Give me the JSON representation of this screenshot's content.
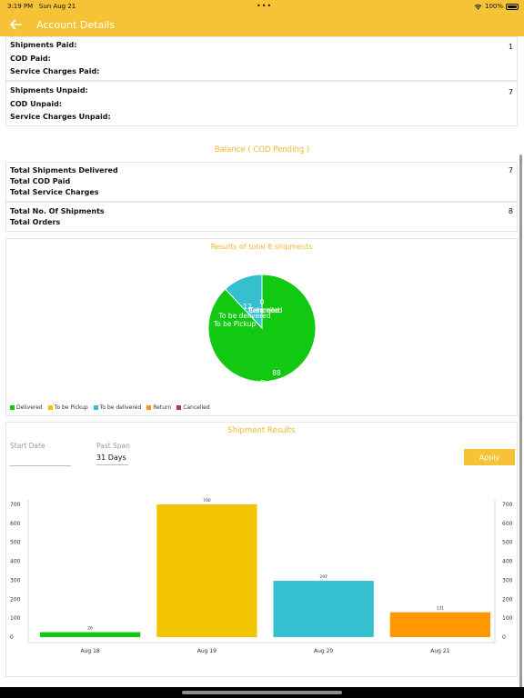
{
  "status_bar": {
    "time": "3:19 PM",
    "date": "Sun Aug 21",
    "dots": "•••",
    "battery": "100%"
  },
  "nav": {
    "title": "Account Details",
    "back_icon": "arrow-left-icon"
  },
  "paid": {
    "shipments_label": "Shipments Paid:",
    "shipments_value": "1",
    "cod_label": "COD Paid:",
    "cod_value": "",
    "service_label": "Service Charges Paid:",
    "service_value": ""
  },
  "unpaid": {
    "shipments_label": "Shipments Unpaid:",
    "shipments_value": "7",
    "cod_label": "COD Unpaid:",
    "cod_value": "",
    "service_label": "Service Charges Unpaid:",
    "service_value": ""
  },
  "balance_title": "Balance ( COD Pending )",
  "totals": {
    "delivered_label": "Total Shipments Delivered",
    "delivered_value": "7",
    "cod_label": "Total COD Paid",
    "cod_value": "",
    "service_label": "Total Service Charges",
    "service_value": ""
  },
  "orders": {
    "shipments_label": "Total No. Of Shipments",
    "shipments_value": "8",
    "orders_label": "Total Orders",
    "orders_value": ""
  },
  "pie_section": {
    "title": "Results of total 8 shipments"
  },
  "shipment_results": {
    "title": "Shipment Results",
    "start_date_label": "Start Date",
    "start_date_value": "",
    "past_span_label": "Past Span",
    "past_span_value": "31 Days",
    "apply_label": "Apply"
  },
  "colors": {
    "brand": "#f6c337",
    "delivered": "#12c912",
    "to_be_pickup": "#f2c500",
    "to_be_delivered": "#35c0d0",
    "return": "#ff9800",
    "cancelled": "#c0314b"
  },
  "chart_data": [
    {
      "type": "pie",
      "title": "Results of total 8 shipments",
      "slices": [
        {
          "name": "Delivered",
          "value": 88,
          "color": "#12c912"
        },
        {
          "name": "To be Pickup",
          "value": 0,
          "color": "#f2c500"
        },
        {
          "name": "To be delivered",
          "value": 12,
          "color": "#35c0d0"
        },
        {
          "name": "Return",
          "value": 0,
          "color": "#ff9800"
        },
        {
          "name": "Cancelled",
          "value": 0,
          "color": "#c0314b"
        }
      ],
      "slice_labels": [
        {
          "text": "88",
          "sub": "Delivered"
        },
        {
          "text": "12",
          "sub": "To be delivered"
        },
        {
          "text": "",
          "sub": "To be Pickup"
        },
        {
          "text": "0",
          "sub": "Returned"
        },
        {
          "text": "",
          "sub": "Cancelled"
        }
      ],
      "legend": [
        "Delivered",
        "To be Pickup",
        "To be delivered",
        "Return",
        "Cancelled"
      ],
      "legend_position": "bottom-left"
    },
    {
      "type": "bar",
      "title": "Shipment Results",
      "categories": [
        "Aug 18",
        "Aug 19",
        "Aug 20",
        "Aug 21"
      ],
      "values": [
        26,
        700,
        297,
        131
      ],
      "bar_colors": [
        "#12c912",
        "#f2c500",
        "#35c0d0",
        "#ff9800"
      ],
      "ylim": [
        0,
        700
      ],
      "yticks": [
        0,
        100,
        200,
        300,
        400,
        500,
        600,
        700
      ],
      "xlabel": "",
      "ylabel": "",
      "grid": false
    }
  ]
}
